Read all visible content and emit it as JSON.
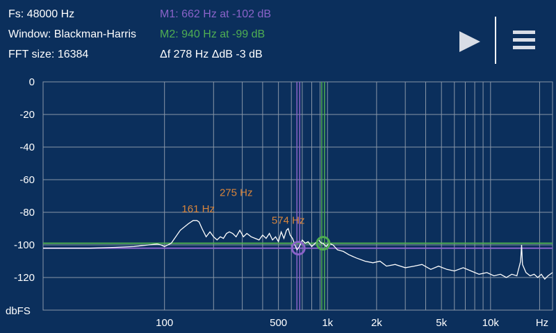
{
  "info": {
    "fs": "Fs: 48000 Hz",
    "window": "Window: Blackman-Harris",
    "fft": "FFT size: 16384"
  },
  "markers": {
    "m1": "M1: 662 Hz at -102 dB",
    "m2": "M2: 940 Hz at -99 dB",
    "delta": "Δf 278 Hz ΔdB -3 dB",
    "m1_color": "#8a63c9",
    "m2_color": "#4fae52"
  },
  "toolbar": {
    "play_icon": "play-icon",
    "menu_icon": "menu-icon"
  },
  "chart_data": {
    "type": "line",
    "xscale": "log",
    "xlim": [
      18,
      24000
    ],
    "ylim": [
      -140,
      0
    ],
    "ylabel": "dbFS",
    "xlabel": "Hz",
    "y_ticks": [
      {
        "value": 0,
        "label": "0"
      },
      {
        "value": -20,
        "label": "-20"
      },
      {
        "value": -40,
        "label": "-40"
      },
      {
        "value": -60,
        "label": "-60"
      },
      {
        "value": -80,
        "label": "-80"
      },
      {
        "value": -100,
        "label": "-100"
      },
      {
        "value": -120,
        "label": "-120"
      }
    ],
    "x_tick_labels": [
      {
        "value": 100,
        "label": "100"
      },
      {
        "value": 500,
        "label": "500"
      },
      {
        "value": 1000,
        "label": "1k"
      },
      {
        "value": 2000,
        "label": "2k"
      },
      {
        "value": 5000,
        "label": "5k"
      },
      {
        "value": 10000,
        "label": "10k"
      }
    ],
    "grid_lines_x": [
      100,
      200,
      300,
      400,
      500,
      600,
      700,
      800,
      900,
      1000,
      2000,
      3000,
      4000,
      5000,
      6000,
      7000,
      8000,
      9000,
      10000,
      20000
    ],
    "grid": true,
    "colors": {
      "background": "#0b2f5c",
      "grid": "#8a97a8",
      "line": "#ffffff",
      "peak_label": "#d9853b"
    },
    "series": [
      {
        "x": [
          18,
          25,
          35,
          50,
          65,
          80,
          90,
          95,
          100,
          110,
          125,
          140,
          150,
          158,
          163,
          170,
          180,
          190,
          200,
          210,
          220,
          230,
          240,
          250,
          262,
          275,
          290,
          305,
          320,
          340,
          360,
          380,
          400,
          420,
          440,
          460,
          480,
          500,
          520,
          540,
          560,
          574,
          590,
          610,
          630,
          650,
          662,
          680,
          700,
          730,
          760,
          800,
          840,
          880,
          920,
          940,
          980,
          1020,
          1080,
          1150,
          1250,
          1350,
          1500,
          1700,
          1900,
          2100,
          2300,
          2600,
          3000,
          3400,
          3800,
          4300,
          4800,
          5400,
          6000,
          6800,
          7600,
          8500,
          9500,
          10500,
          11500,
          12500,
          13500,
          14500,
          15300,
          15500,
          15700,
          16500,
          17500,
          18500,
          19500,
          20500,
          21500,
          22500,
          24000
        ],
        "y": [
          -102,
          -102,
          -102,
          -101.5,
          -101,
          -100,
          -99.5,
          -100,
          -101,
          -99,
          -91,
          -87,
          -85,
          -85,
          -86,
          -90,
          -95,
          -92,
          -95,
          -97,
          -95,
          -96,
          -93,
          -92,
          -93,
          -95,
          -91,
          -95,
          -93,
          -95,
          -96,
          -97,
          -94,
          -96,
          -93,
          -97,
          -95,
          -98,
          -92,
          -96,
          -91,
          -90,
          -94,
          -96,
          -100,
          -103,
          -102,
          -100,
          -97,
          -99,
          -98,
          -101,
          -99,
          -97,
          -99,
          -99,
          -101,
          -99,
          -100,
          -103,
          -104,
          -106,
          -108,
          -110,
          -111,
          -110,
          -113,
          -112,
          -114,
          -113,
          -112,
          -115,
          -113,
          -115,
          -116,
          -114,
          -116,
          -118,
          -117,
          -119,
          -118,
          -120,
          -118,
          -119,
          -110,
          -100,
          -112,
          -117,
          -119,
          -118,
          -120,
          -118,
          -121,
          -119,
          -117
        ]
      }
    ],
    "annotations": [
      {
        "x": 161,
        "y": -80,
        "label": "161 Hz"
      },
      {
        "x": 275,
        "y": -70,
        "label": "275 Hz"
      },
      {
        "x": 574,
        "y": -87,
        "label": "574 Hz"
      }
    ],
    "marker_lines": [
      {
        "name": "M1",
        "freq": 662,
        "level": -102,
        "color": "#8a63c9"
      },
      {
        "name": "M2",
        "freq": 940,
        "level": -99,
        "color": "#4fae52"
      }
    ]
  }
}
